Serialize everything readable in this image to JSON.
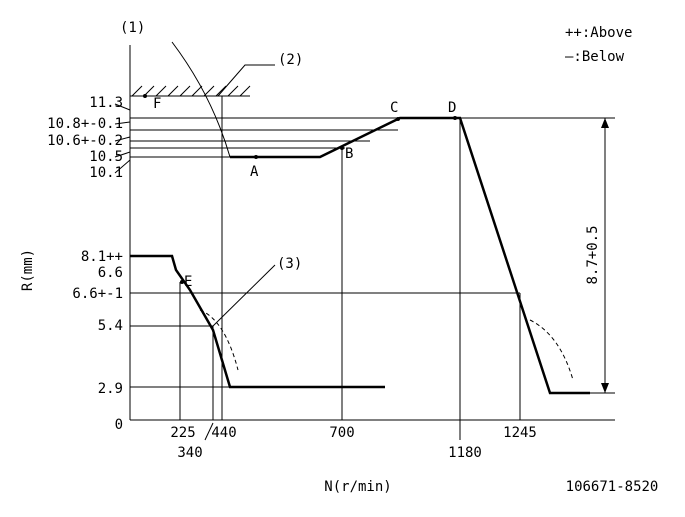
{
  "ref_1": "(1)",
  "ref_2": "(2)",
  "ref_3": "(3)",
  "legend": {
    "above": "++:Above",
    "below": "—:Below"
  },
  "points": {
    "F": "F",
    "C": "C",
    "D": "D",
    "A": "A",
    "B": "B",
    "E": "E"
  },
  "y_axis": {
    "label": "R(mm)",
    "origin": "0",
    "labels": [
      "11.3",
      "10.8+-0.1",
      "10.6+-0.2",
      "10.5",
      "10.1",
      "8.1++",
      "6.6",
      "6.6+-1",
      "5.4",
      "2.9"
    ]
  },
  "x_axis": {
    "label": "N(r/min)",
    "upper_labels": [
      "225",
      "440",
      "700",
      "1245"
    ],
    "lower_labels": [
      "340",
      "1180"
    ]
  },
  "dimension": "8.7+0.5",
  "drawing_number": "106671-8520"
}
